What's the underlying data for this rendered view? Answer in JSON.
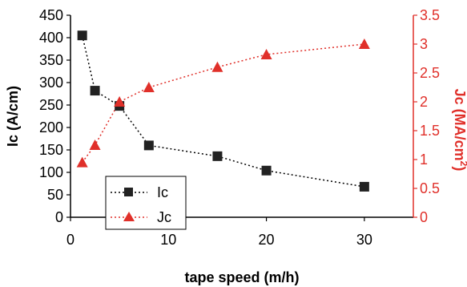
{
  "chart_data": {
    "type": "line",
    "xlabel": "tape speed (m/h)",
    "ylabel_left": "Ic (A/cm)",
    "ylabel_right_main": "Jc (MA/cm",
    "ylabel_right_sup": "2",
    "ylabel_right_close": ")",
    "xlim": [
      0,
      35
    ],
    "ylim_left": [
      0,
      450
    ],
    "ylim_right": [
      0,
      3.5
    ],
    "x_ticks": [
      "0",
      "10",
      "20",
      "30"
    ],
    "y_left_ticks": [
      "0",
      "50",
      "100",
      "150",
      "200",
      "250",
      "300",
      "350",
      "400",
      "450"
    ],
    "y_right_ticks": [
      "0",
      "0.5",
      "1",
      "1.5",
      "2",
      "2.5",
      "3",
      "3.5"
    ],
    "grid": false,
    "legend_position": "bottom-left",
    "series": [
      {
        "name": "Ic",
        "axis": "left",
        "color": "#000000",
        "marker": "square",
        "x": [
          1.2,
          2.5,
          5,
          8,
          15,
          20,
          30
        ],
        "y": [
          405,
          282,
          248,
          160,
          136,
          104,
          68
        ]
      },
      {
        "name": "Jc",
        "axis": "right",
        "color": "#e0302a",
        "marker": "triangle",
        "x": [
          1.2,
          2.5,
          5,
          8,
          15,
          20,
          30
        ],
        "y": [
          0.95,
          1.25,
          2.0,
          2.25,
          2.6,
          2.82,
          3.0
        ]
      }
    ]
  }
}
